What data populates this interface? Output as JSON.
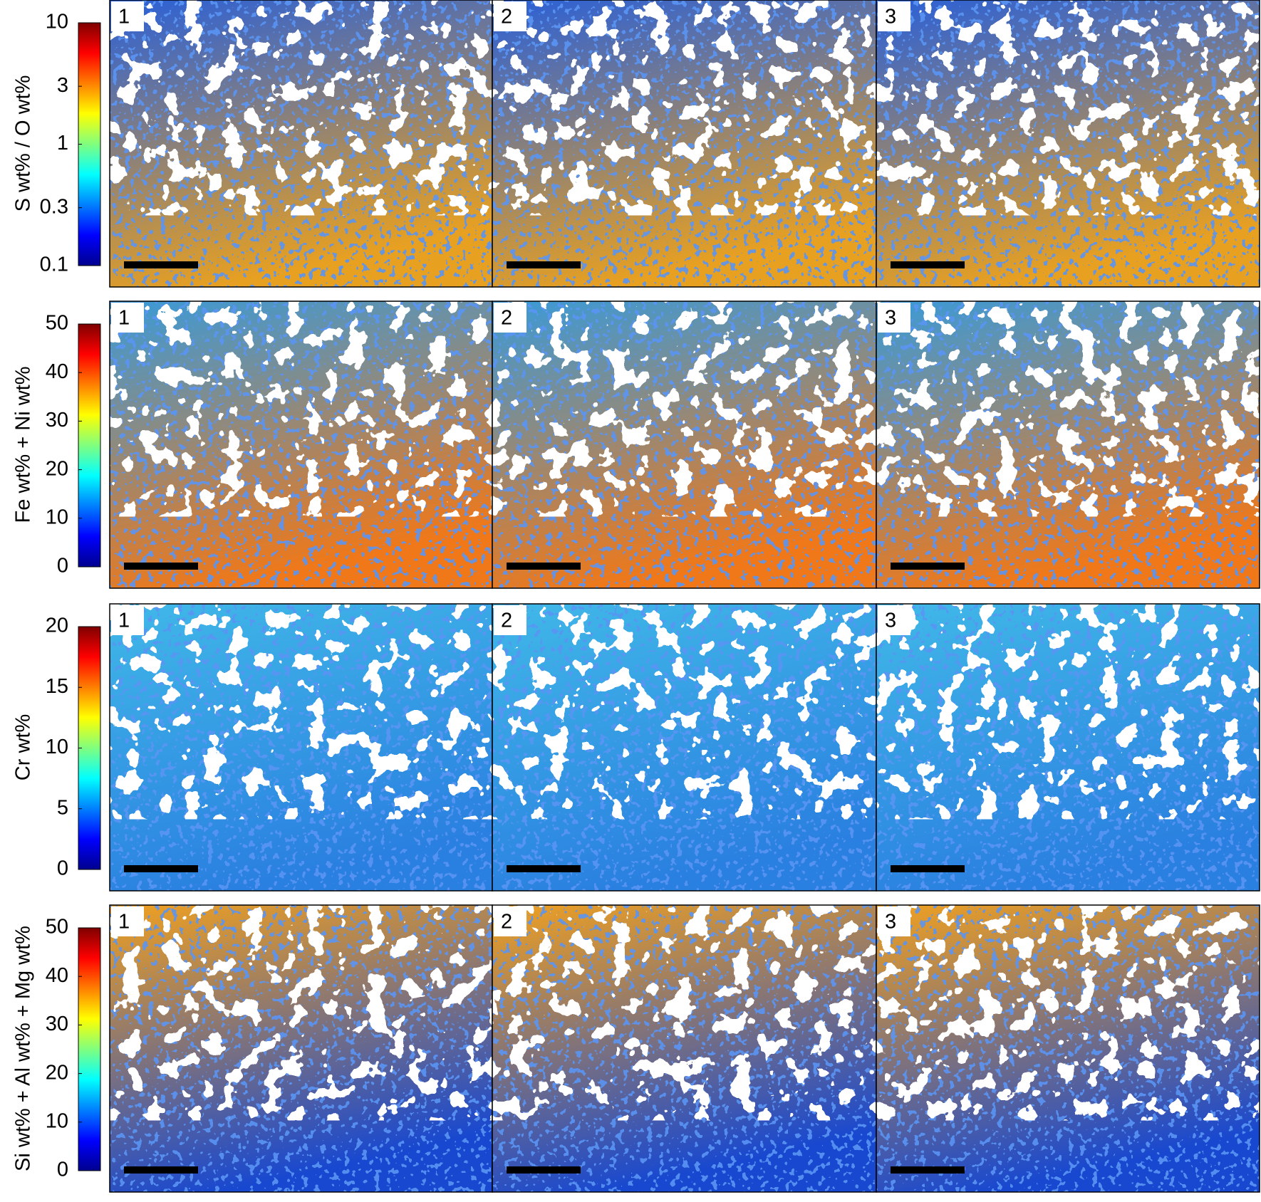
{
  "rows": [
    {
      "label": "S wt% / O wt%",
      "scale": "log",
      "lim": [
        0.1,
        10
      ],
      "ticks": [
        0.1,
        0.3,
        1,
        3,
        10
      ],
      "panels": [
        "1",
        "2",
        "3"
      ],
      "colors": [
        "#e8a020",
        "#2a60d8"
      ]
    },
    {
      "label": "Fe wt% + Ni wt%",
      "scale": "linear",
      "lim": [
        0,
        50
      ],
      "ticks": [
        0,
        10,
        20,
        30,
        40,
        50
      ],
      "panels": [
        "1",
        "2",
        "3"
      ],
      "colors": [
        "#f07818",
        "#3a9ad8"
      ]
    },
    {
      "label": "Cr wt%",
      "scale": "linear",
      "lim": [
        0,
        20
      ],
      "ticks": [
        0,
        5,
        10,
        15,
        20
      ],
      "panels": [
        "1",
        "2",
        "3"
      ],
      "colors": [
        "#2a80e0",
        "#40b8e8"
      ]
    },
    {
      "label": "Si wt% + Al wt% + Mg wt%",
      "scale": "linear",
      "lim": [
        0,
        50
      ],
      "ticks": [
        0,
        10,
        20,
        30,
        40,
        50
      ],
      "panels": [
        "1",
        "2",
        "3"
      ],
      "colors": [
        "#1848d0",
        "#f0a020"
      ]
    }
  ]
}
